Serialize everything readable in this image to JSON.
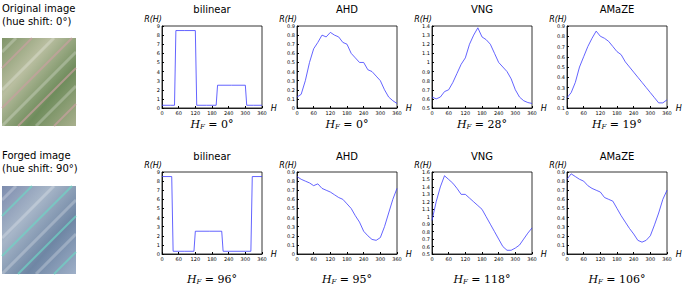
{
  "row_labels": [
    {
      "lines": [
        "Original image",
        "(hue shift: 0°)"
      ]
    },
    {
      "lines": [
        "Forged image",
        "(hue shift: 90°)"
      ]
    }
  ],
  "chart_data": [
    {
      "type": "line",
      "title": "bilinear",
      "x_label": "H",
      "y_label": "R(H)",
      "annotation": {
        "symbol": "H",
        "subscript": "F",
        "rest": " = 0°"
      },
      "x": [
        0,
        30,
        45,
        50,
        80,
        120,
        125,
        160,
        195,
        200,
        250,
        300,
        305,
        330,
        360
      ],
      "values": [
        0.3,
        0.3,
        0.3,
        8.5,
        8.5,
        8.5,
        0.3,
        0.3,
        0.3,
        2.5,
        2.5,
        2.5,
        0.3,
        0.3,
        0.3
      ],
      "color": "#3c3cff",
      "xlim": [
        0,
        360
      ],
      "xticks": [
        0,
        60,
        120,
        180,
        240,
        300,
        360
      ],
      "ylim": [
        0,
        9
      ],
      "yticks": [
        0,
        1,
        2,
        3,
        4,
        5,
        6,
        7,
        8,
        9
      ],
      "grid": false
    },
    {
      "type": "line",
      "title": "AHD",
      "x_label": "H",
      "y_label": "R(H)",
      "annotation": {
        "symbol": "H",
        "subscript": "F",
        "rest": " = 0°"
      },
      "x": [
        0,
        15,
        30,
        45,
        60,
        75,
        90,
        105,
        120,
        135,
        150,
        165,
        180,
        195,
        210,
        225,
        240,
        255,
        270,
        285,
        300,
        315,
        330,
        345,
        360
      ],
      "values": [
        0.12,
        0.15,
        0.3,
        0.5,
        0.65,
        0.72,
        0.8,
        0.78,
        0.83,
        0.8,
        0.78,
        0.72,
        0.7,
        0.6,
        0.55,
        0.5,
        0.5,
        0.42,
        0.4,
        0.35,
        0.3,
        0.2,
        0.12,
        0.08,
        0.05
      ],
      "color": "#3c3cff",
      "xlim": [
        0,
        360
      ],
      "xticks": [
        0,
        60,
        120,
        180,
        240,
        300,
        360
      ],
      "ylim": [
        0,
        0.9
      ],
      "yticks": [
        0,
        0.1,
        0.2,
        0.3,
        0.4,
        0.5,
        0.6,
        0.7,
        0.8,
        0.9
      ],
      "grid": false
    },
    {
      "type": "line",
      "title": "VNG",
      "x_label": "H",
      "y_label": "R(H)",
      "annotation": {
        "symbol": "H",
        "subscript": "F",
        "rest": " = 28°"
      },
      "x": [
        0,
        15,
        30,
        45,
        60,
        75,
        90,
        105,
        120,
        135,
        150,
        165,
        180,
        195,
        210,
        225,
        240,
        255,
        270,
        285,
        300,
        315,
        330,
        345,
        360
      ],
      "values": [
        0.62,
        0.6,
        0.62,
        0.68,
        0.7,
        0.78,
        0.88,
        0.98,
        1.05,
        1.2,
        1.3,
        1.38,
        1.28,
        1.25,
        1.2,
        1.1,
        1.0,
        0.95,
        0.9,
        0.82,
        0.7,
        0.62,
        0.58,
        0.56,
        0.55
      ],
      "color": "#3c3cff",
      "xlim": [
        0,
        360
      ],
      "xticks": [
        0,
        60,
        120,
        180,
        240,
        300,
        360
      ],
      "ylim": [
        0.5,
        1.4
      ],
      "yticks": [
        0.5,
        0.6,
        0.7,
        0.8,
        0.9,
        1,
        1.1,
        1.2,
        1.3,
        1.4
      ],
      "grid": false
    },
    {
      "type": "line",
      "title": "AMaZE",
      "x_label": "H",
      "y_label": "R(H)",
      "annotation": {
        "symbol": "H",
        "subscript": "F",
        "rest": " = 19°"
      },
      "x": [
        0,
        15,
        30,
        45,
        60,
        75,
        90,
        105,
        120,
        135,
        150,
        165,
        180,
        195,
        210,
        225,
        240,
        255,
        270,
        285,
        300,
        315,
        330,
        345,
        360
      ],
      "values": [
        0.2,
        0.25,
        0.35,
        0.5,
        0.6,
        0.7,
        0.78,
        0.85,
        0.8,
        0.78,
        0.75,
        0.7,
        0.65,
        0.62,
        0.55,
        0.5,
        0.45,
        0.4,
        0.35,
        0.3,
        0.25,
        0.2,
        0.15,
        0.15,
        0.18
      ],
      "color": "#3c3cff",
      "xlim": [
        0,
        360
      ],
      "xticks": [
        0,
        60,
        120,
        180,
        240,
        300,
        360
      ],
      "ylim": [
        0.1,
        0.9
      ],
      "yticks": [
        0.1,
        0.2,
        0.3,
        0.4,
        0.5,
        0.6,
        0.7,
        0.8,
        0.9
      ],
      "grid": false
    },
    {
      "type": "line",
      "title": "bilinear",
      "x_label": "H",
      "y_label": "R(H)",
      "annotation": {
        "symbol": "H",
        "subscript": "F",
        "rest": " = 96°"
      },
      "x": [
        0,
        35,
        40,
        80,
        115,
        120,
        170,
        215,
        220,
        270,
        320,
        325,
        360
      ],
      "values": [
        8.5,
        8.5,
        0.3,
        0.3,
        0.3,
        2.5,
        2.5,
        2.5,
        0.3,
        0.3,
        0.3,
        8.5,
        8.5
      ],
      "color": "#3c3cff",
      "xlim": [
        0,
        360
      ],
      "xticks": [
        0,
        60,
        120,
        180,
        240,
        300,
        360
      ],
      "ylim": [
        0,
        9
      ],
      "yticks": [
        0,
        1,
        2,
        3,
        4,
        5,
        6,
        7,
        8,
        9
      ],
      "grid": false
    },
    {
      "type": "line",
      "title": "AHD",
      "x_label": "H",
      "y_label": "R(H)",
      "annotation": {
        "symbol": "H",
        "subscript": "F",
        "rest": " = 95°"
      },
      "x": [
        0,
        15,
        30,
        45,
        60,
        75,
        90,
        105,
        120,
        135,
        150,
        165,
        180,
        195,
        210,
        225,
        240,
        255,
        270,
        285,
        300,
        315,
        330,
        345,
        360
      ],
      "values": [
        0.85,
        0.82,
        0.8,
        0.78,
        0.75,
        0.77,
        0.72,
        0.7,
        0.68,
        0.65,
        0.62,
        0.6,
        0.55,
        0.5,
        0.42,
        0.35,
        0.25,
        0.2,
        0.16,
        0.15,
        0.18,
        0.3,
        0.45,
        0.6,
        0.72
      ],
      "color": "#3c3cff",
      "xlim": [
        0,
        360
      ],
      "xticks": [
        0,
        60,
        120,
        180,
        240,
        300,
        360
      ],
      "ylim": [
        0,
        0.9
      ],
      "yticks": [
        0,
        0.1,
        0.2,
        0.3,
        0.4,
        0.5,
        0.6,
        0.7,
        0.8,
        0.9
      ],
      "grid": false
    },
    {
      "type": "line",
      "title": "VNG",
      "x_label": "H",
      "y_label": "R(H)",
      "annotation": {
        "symbol": "H",
        "subscript": "F",
        "rest": " = 118°"
      },
      "x": [
        0,
        15,
        30,
        45,
        60,
        75,
        90,
        105,
        120,
        135,
        150,
        165,
        180,
        195,
        210,
        225,
        240,
        255,
        270,
        285,
        300,
        315,
        330,
        345,
        360
      ],
      "values": [
        0.95,
        1.2,
        1.4,
        1.55,
        1.5,
        1.45,
        1.38,
        1.3,
        1.3,
        1.25,
        1.2,
        1.15,
        1.1,
        1.0,
        0.9,
        0.8,
        0.7,
        0.6,
        0.55,
        0.55,
        0.58,
        0.62,
        0.7,
        0.78,
        0.85
      ],
      "color": "#3c3cff",
      "xlim": [
        0,
        360
      ],
      "xticks": [
        0,
        60,
        120,
        180,
        240,
        300,
        360
      ],
      "ylim": [
        0.5,
        1.6
      ],
      "yticks": [
        0.5,
        0.6,
        0.7,
        0.8,
        0.9,
        1,
        1.1,
        1.2,
        1.3,
        1.4,
        1.5,
        1.6
      ],
      "grid": false
    },
    {
      "type": "line",
      "title": "AMaZE",
      "x_label": "H",
      "y_label": "R(H)",
      "annotation": {
        "symbol": "H",
        "subscript": "F",
        "rest": " = 106°"
      },
      "x": [
        0,
        15,
        30,
        45,
        60,
        75,
        90,
        105,
        120,
        135,
        150,
        165,
        180,
        195,
        210,
        225,
        240,
        255,
        270,
        285,
        300,
        315,
        330,
        345,
        360
      ],
      "values": [
        0.82,
        0.88,
        0.85,
        0.82,
        0.8,
        0.75,
        0.72,
        0.7,
        0.68,
        0.62,
        0.6,
        0.58,
        0.5,
        0.42,
        0.35,
        0.28,
        0.22,
        0.15,
        0.13,
        0.15,
        0.2,
        0.32,
        0.45,
        0.6,
        0.7
      ],
      "color": "#3c3cff",
      "xlim": [
        0,
        360
      ],
      "xticks": [
        0,
        60,
        120,
        180,
        240,
        300,
        360
      ],
      "ylim": [
        0,
        0.9
      ],
      "yticks": [
        0,
        0.1,
        0.2,
        0.3,
        0.4,
        0.5,
        0.6,
        0.7,
        0.8,
        0.9
      ],
      "grid": false
    }
  ]
}
